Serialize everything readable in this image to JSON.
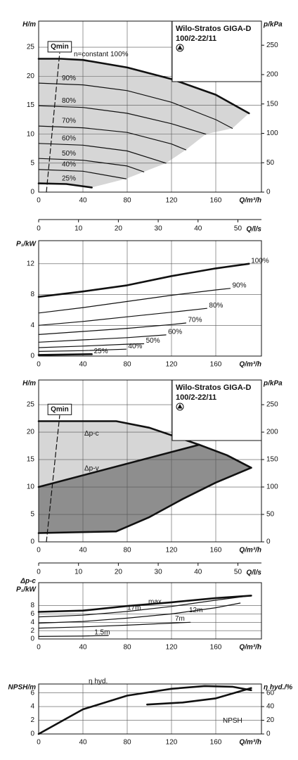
{
  "chart_data": [
    {
      "type": "line",
      "title": "Wilo-Stratos GIGA-D",
      "subtitle": "100/2-22/11",
      "xlabel": "Q/m³/h",
      "ylabel": "H/m",
      "y2label": "p/kPa",
      "xlim": [
        0,
        200
      ],
      "xticks": [
        0,
        40,
        80,
        120,
        160
      ],
      "ylim": [
        0,
        29.5
      ],
      "yticks": [
        0,
        5,
        10,
        15,
        20,
        25
      ],
      "y2lim": [
        0,
        291
      ],
      "y2ticks": [
        0,
        50,
        100,
        150,
        200,
        250
      ],
      "grid": true,
      "shade": "#d6d6d6",
      "series": [
        {
          "name": "n=constant 100%",
          "color": "#111111",
          "bold": true,
          "x": [
            0,
            20,
            40,
            80,
            120,
            160,
            190
          ],
          "values": [
            23,
            23,
            22.8,
            21.5,
            19.5,
            16.8,
            13.6
          ]
        },
        {
          "name": "90%",
          "color": "#111111",
          "x": [
            0,
            40,
            80,
            120,
            160,
            175
          ],
          "values": [
            18.8,
            18.5,
            17.5,
            15.5,
            12.5,
            11
          ]
        },
        {
          "name": "80%",
          "color": "#111111",
          "x": [
            0,
            40,
            80,
            120,
            151
          ],
          "values": [
            14.9,
            14.6,
            13.6,
            11.8,
            10
          ]
        },
        {
          "name": "70%",
          "color": "#111111",
          "x": [
            0,
            40,
            80,
            120,
            133
          ],
          "values": [
            11.4,
            11.1,
            10.3,
            8.3,
            7.3
          ]
        },
        {
          "name": "60%",
          "color": "#111111",
          "x": [
            0,
            40,
            80,
            115
          ],
          "values": [
            8.4,
            8.1,
            7.1,
            5
          ]
        },
        {
          "name": "50%",
          "color": "#111111",
          "x": [
            0,
            40,
            80,
            95
          ],
          "values": [
            5.8,
            5.5,
            4.5,
            3.5
          ]
        },
        {
          "name": "40%",
          "color": "#111111",
          "x": [
            0,
            40,
            79
          ],
          "values": [
            3.9,
            3.6,
            2.3
          ]
        },
        {
          "name": "25%",
          "color": "#111111",
          "bold": true,
          "x": [
            0,
            25,
            48
          ],
          "values": [
            1.5,
            1.4,
            0.8
          ]
        },
        {
          "name": "Qmin",
          "color": "#111111",
          "dash": true,
          "x": [
            7,
            19
          ],
          "values": [
            0,
            24
          ]
        }
      ]
    },
    {
      "type": "axis",
      "xlabel": "Q/l/s",
      "xlim": [
        0,
        55.56
      ],
      "xticks": [
        0,
        10,
        20,
        30,
        40,
        50
      ]
    },
    {
      "type": "line",
      "xlabel": "Q/m³/h",
      "ylabel": "P₁/kW",
      "xlim": [
        0,
        200
      ],
      "xticks": [
        0,
        40,
        80,
        120,
        160
      ],
      "ylim": [
        0,
        15
      ],
      "yticks": [
        0,
        4,
        8,
        12
      ],
      "grid": true,
      "series": [
        {
          "name": "100%",
          "color": "#111111",
          "bold": true,
          "x": [
            0,
            40,
            80,
            120,
            160,
            190
          ],
          "values": [
            7.7,
            8.4,
            9.2,
            10.4,
            11.4,
            12
          ]
        },
        {
          "name": "90%",
          "color": "#111111",
          "x": [
            0,
            40,
            80,
            120,
            160,
            173
          ],
          "values": [
            5.6,
            6.3,
            7.1,
            7.9,
            8.6,
            8.8
          ]
        },
        {
          "name": "80%",
          "color": "#111111",
          "x": [
            0,
            40,
            80,
            120,
            152
          ],
          "values": [
            4,
            4.5,
            5.1,
            5.7,
            6.2
          ]
        },
        {
          "name": "70%",
          "color": "#111111",
          "x": [
            0,
            40,
            80,
            120,
            133
          ],
          "values": [
            2.8,
            3.2,
            3.6,
            4.1,
            4.3
          ]
        },
        {
          "name": "60%",
          "color": "#111111",
          "x": [
            0,
            40,
            80,
            115
          ],
          "values": [
            1.8,
            2.1,
            2.4,
            2.75
          ]
        },
        {
          "name": "50%",
          "color": "#111111",
          "x": [
            0,
            40,
            80,
            95
          ],
          "values": [
            1.1,
            1.3,
            1.55,
            1.6
          ]
        },
        {
          "name": "40%",
          "color": "#111111",
          "x": [
            0,
            40,
            79
          ],
          "values": [
            0.6,
            0.7,
            0.9
          ]
        },
        {
          "name": "25%",
          "color": "#111111",
          "bold": true,
          "x": [
            0,
            48
          ],
          "values": [
            0.15,
            0.25
          ]
        }
      ]
    },
    {
      "type": "line",
      "title": "Wilo-Stratos GIGA-D",
      "subtitle": "100/2-22/11",
      "xlabel": "Q/m³/h",
      "ylabel": "H/m",
      "y2label": "p/kPa",
      "xlim": [
        0,
        200
      ],
      "xticks": [
        0,
        40,
        80,
        120,
        160
      ],
      "ylim": [
        0,
        29.5
      ],
      "yticks": [
        0,
        5,
        10,
        15,
        20,
        25
      ],
      "y2lim": [
        0,
        295
      ],
      "y2ticks": [
        0,
        50,
        100,
        150,
        200,
        250
      ],
      "grid": true,
      "shade": [
        "#d6d6d6",
        "#8e8e8e"
      ],
      "series": [
        {
          "name": "Δp-c",
          "color": "#111111",
          "bold": true,
          "x": [
            0,
            70,
            100,
            145,
            170,
            192
          ],
          "values": [
            22,
            22,
            20.8,
            17.7,
            15.8,
            13.5
          ]
        },
        {
          "name": "Δp-v",
          "color": "#111111",
          "bold": true,
          "x": [
            0,
            145
          ],
          "values": [
            10,
            17.7
          ]
        },
        {
          "color": "#111111",
          "bold": true,
          "x": [
            0,
            70,
            100,
            130,
            160,
            192
          ],
          "values": [
            1.6,
            1.9,
            4.5,
            7.8,
            10.8,
            13.5
          ]
        },
        {
          "name": "Qmin",
          "color": "#111111",
          "dash": true,
          "x": [
            7,
            19
          ],
          "values": [
            0,
            23
          ]
        }
      ]
    },
    {
      "type": "axis",
      "xlabel": "Q/l/s",
      "xlim": [
        0,
        55.56
      ],
      "xticks": [
        0,
        10,
        20,
        30,
        40,
        50
      ]
    },
    {
      "type": "line",
      "xlabel": "Q/m³/h",
      "ylabel": [
        "Δp-c",
        "P₁/kW"
      ],
      "xlim": [
        0,
        200
      ],
      "xticks": [
        0,
        40,
        80,
        120,
        160
      ],
      "ylim": [
        0,
        13.5
      ],
      "yticks": [
        0,
        2,
        4,
        6,
        8
      ],
      "grid": true,
      "series": [
        {
          "name": "max.",
          "color": "#111111",
          "bold": true,
          "x": [
            0,
            40,
            80,
            120,
            160,
            192
          ],
          "values": [
            6.5,
            6.8,
            7.9,
            8.8,
            9.8,
            10.4
          ]
        },
        {
          "name": "17m",
          "color": "#111111",
          "x": [
            0,
            40,
            80,
            120,
            160,
            192
          ],
          "values": [
            5.3,
            5.7,
            6.6,
            7.8,
            9.3,
            10.4
          ]
        },
        {
          "name": "12m",
          "color": "#111111",
          "x": [
            0,
            40,
            80,
            120,
            160,
            182
          ],
          "values": [
            3.8,
            4.2,
            5,
            6,
            7.5,
            8.6
          ]
        },
        {
          "name": "7m",
          "color": "#111111",
          "x": [
            0,
            40,
            80,
            120,
            137
          ],
          "values": [
            2.6,
            2.9,
            3.3,
            3.8,
            4
          ]
        },
        {
          "name": "1.5m",
          "color": "#111111",
          "x": [
            0,
            40,
            63
          ],
          "values": [
            0.6,
            0.7,
            0.85
          ]
        }
      ]
    },
    {
      "type": "line",
      "xlabel": "Q/m³/h",
      "ylabel": "NPSH/m",
      "y2label": "η hyd./%",
      "xlim": [
        0,
        200
      ],
      "xticks": [
        0,
        40,
        80,
        120,
        160
      ],
      "ylim": [
        0,
        7.3
      ],
      "yticks": [
        0,
        2,
        4,
        6
      ],
      "y2lim": [
        0,
        73
      ],
      "y2ticks": [
        0,
        20,
        40,
        60
      ],
      "grid": true,
      "series": [
        {
          "name": "η hyd.",
          "color": "#111111",
          "bold": true,
          "axis": "y2",
          "x": [
            0,
            20,
            40,
            80,
            120,
            150,
            175,
            192
          ],
          "values": [
            0,
            18,
            36,
            56,
            66,
            70,
            69,
            64
          ]
        },
        {
          "name": "NPSH",
          "color": "#111111",
          "bold": true,
          "x": [
            98,
            130,
            160,
            192
          ],
          "values": [
            4.3,
            4.6,
            5.2,
            6.7
          ]
        }
      ]
    }
  ]
}
